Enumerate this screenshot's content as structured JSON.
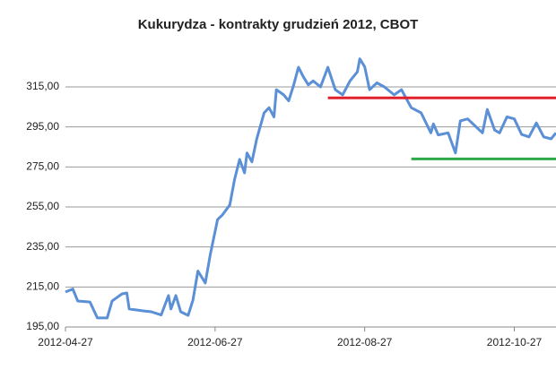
{
  "chart_data": {
    "type": "line",
    "title": "Kukurydza - kontrakty grudzień 2012, CBOT",
    "x": [
      "2012-04-27",
      "2012-04-30",
      "2012-05-02",
      "2012-05-07",
      "2012-05-10",
      "2012-05-14",
      "2012-05-16",
      "2012-05-20",
      "2012-05-22",
      "2012-05-23",
      "2012-05-29",
      "2012-06-01",
      "2012-06-05",
      "2012-06-08",
      "2012-06-09",
      "2012-06-11",
      "2012-06-13",
      "2012-06-16",
      "2012-06-18",
      "2012-06-20",
      "2012-06-23",
      "2012-06-25",
      "2012-06-28",
      "2012-06-30",
      "2012-07-03",
      "2012-07-05",
      "2012-07-07",
      "2012-07-09",
      "2012-07-10",
      "2012-07-12",
      "2012-07-14",
      "2012-07-17",
      "2012-07-19",
      "2012-07-21",
      "2012-07-22",
      "2012-07-25",
      "2012-07-27",
      "2012-07-29",
      "2012-07-31",
      "2012-08-02",
      "2012-08-04",
      "2012-08-06",
      "2012-08-09",
      "2012-08-12",
      "2012-08-15",
      "2012-08-18",
      "2012-08-21",
      "2012-08-24",
      "2012-08-25",
      "2012-08-27",
      "2012-08-29",
      "2012-09-01",
      "2012-09-04",
      "2012-09-08",
      "2012-09-11",
      "2012-09-15",
      "2012-09-19",
      "2012-09-23",
      "2012-09-24",
      "2012-09-26",
      "2012-09-30",
      "2012-10-03",
      "2012-10-05",
      "2012-10-08",
      "2012-10-11",
      "2012-10-14",
      "2012-10-16",
      "2012-10-19",
      "2012-10-21",
      "2012-10-24",
      "2012-10-27",
      "2012-10-30",
      "2012-11-02",
      "2012-11-05",
      "2012-11-08",
      "2012-11-11",
      "2012-11-13"
    ],
    "series": [
      {
        "color": "#5b8fd6",
        "values": [
          212.5,
          214,
          208,
          207.5,
          199.5,
          199.5,
          208,
          211.5,
          212,
          204,
          203,
          202.6,
          201,
          210.7,
          204,
          210.7,
          202.6,
          200.8,
          208.5,
          223,
          217,
          231,
          248.7,
          251,
          256,
          269,
          278.7,
          272,
          282,
          277.5,
          289,
          302,
          304.6,
          300,
          313.6,
          311,
          308,
          315.8,
          324.8,
          320,
          316,
          318,
          315,
          324.8,
          313.6,
          311,
          318,
          322.5,
          329,
          325,
          313.6,
          317,
          315,
          311,
          313.6,
          304.6,
          302,
          292,
          296.5,
          291,
          292,
          282,
          298,
          299,
          295.5,
          292,
          303.7,
          293.4,
          292,
          300,
          299,
          291.2,
          290,
          297,
          290,
          289,
          292
        ]
      }
    ],
    "reference_lines": [
      {
        "value": 309.5,
        "color": "#e0202a",
        "from": "2012-08-12"
      },
      {
        "value": 279,
        "color": "#2eaa4a",
        "from": "2012-09-15"
      }
    ],
    "xlim": [
      "2012-04-27",
      "2012-11-13"
    ],
    "xticks": [
      "2012-04-27",
      "2012-06-27",
      "2012-08-27",
      "2012-10-27"
    ],
    "ylim": [
      195,
      332
    ],
    "yticks": [
      {
        "value": 195,
        "label": "195,00"
      },
      {
        "value": 215,
        "label": "215,00"
      },
      {
        "value": 235,
        "label": "235,00"
      },
      {
        "value": 255,
        "label": "255,00"
      },
      {
        "value": 275,
        "label": "275,00"
      },
      {
        "value": 295,
        "label": "295,00"
      },
      {
        "value": 315,
        "label": "315,00"
      }
    ],
    "grid": true
  }
}
